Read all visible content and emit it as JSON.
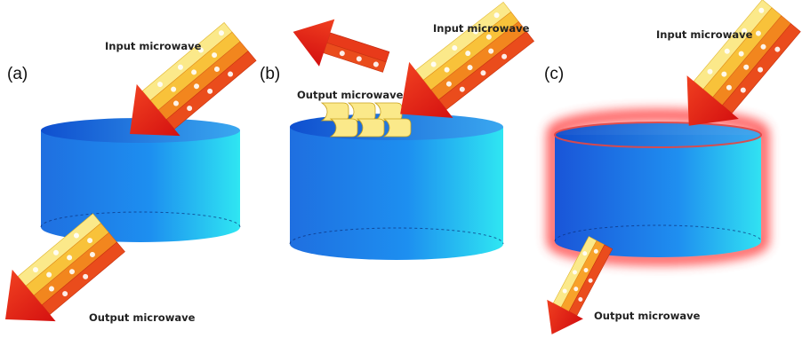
{
  "panels": [
    {
      "label": "(a)",
      "input_label": "Input microwave",
      "output_label": "Output microwave"
    },
    {
      "label": "(b)",
      "input_label": "Input microwave",
      "output_label": "Output microwave"
    },
    {
      "label": "(c)",
      "input_label": "Input microwave",
      "output_label": "Output microwave"
    }
  ],
  "colors": {
    "cylinder_dark": "#1f6fe0",
    "cylinder_light": "#2fe6f2",
    "top_dark": "#0f4fcf",
    "top_light": "#3aa8f0",
    "arrow_red": "#e41b1b",
    "arrow_orange": "#f6a21a",
    "arrow_yellow": "#fbe98a",
    "glow_red": "#ff3b3b"
  }
}
